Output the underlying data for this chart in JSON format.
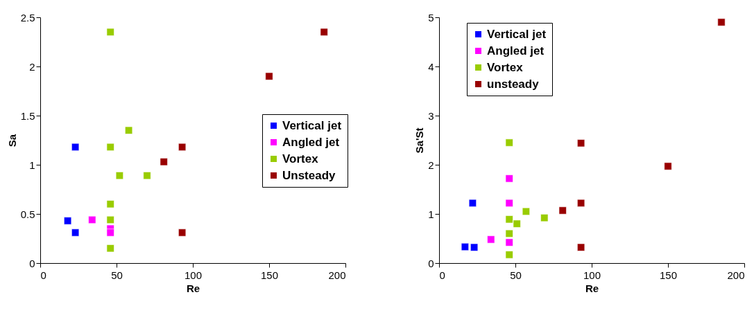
{
  "chart_data": [
    {
      "type": "scatter",
      "xlabel": "Re",
      "ylabel": "Sa",
      "xlim": [
        0,
        200
      ],
      "xticks": [
        0,
        50,
        100,
        150,
        200
      ],
      "ylim": [
        0,
        2.5
      ],
      "yticks": [
        0,
        0.5,
        1,
        1.5,
        2,
        2.5
      ],
      "grid": false,
      "legend": "right",
      "marker": "square",
      "series": [
        {
          "name": "Vertical jet",
          "color": "#0000ff",
          "x": [
            18,
            23,
            23
          ],
          "values": [
            0.43,
            1.18,
            0.31
          ]
        },
        {
          "name": "Angled jet",
          "color": "#ff00ff",
          "x": [
            34,
            46,
            46
          ],
          "values": [
            0.44,
            0.35,
            0.31
          ]
        },
        {
          "name": "Vortex",
          "color": "#99cc00",
          "x": [
            46,
            58,
            46,
            52,
            70,
            46,
            46,
            46
          ],
          "values": [
            2.35,
            1.35,
            1.18,
            0.89,
            0.89,
            0.6,
            0.44,
            0.15
          ]
        },
        {
          "name": "Unsteady",
          "color": "#990000",
          "x": [
            186,
            150,
            93,
            81,
            93
          ],
          "values": [
            2.35,
            1.9,
            1.18,
            1.03,
            0.31
          ]
        }
      ]
    },
    {
      "type": "scatter",
      "xlabel": "Re",
      "ylabel": "Sa'St",
      "xlim": [
        0,
        200
      ],
      "xticks": [
        0,
        50,
        100,
        150,
        200
      ],
      "ylim": [
        0,
        5
      ],
      "yticks": [
        0,
        1,
        2,
        3,
        4,
        5
      ],
      "grid": false,
      "legend": "top left",
      "marker": "square",
      "series": [
        {
          "name": "Vertical jet",
          "color": "#0000ff",
          "x": [
            17,
            23,
            22
          ],
          "values": [
            0.33,
            0.32,
            1.22
          ]
        },
        {
          "name": "Angled jet",
          "color": "#ff00ff",
          "x": [
            46,
            46,
            34,
            46
          ],
          "values": [
            1.72,
            1.22,
            0.48,
            0.42
          ]
        },
        {
          "name": "Vortex",
          "color": "#99cc00",
          "x": [
            46,
            57,
            69,
            46,
            51,
            46,
            46
          ],
          "values": [
            2.45,
            1.05,
            0.92,
            0.89,
            0.8,
            0.6,
            0.17
          ]
        },
        {
          "name": "unsteady",
          "color": "#990000",
          "x": [
            185,
            150,
            93,
            93,
            81,
            93
          ],
          "values": [
            4.9,
            1.97,
            2.44,
            1.22,
            1.07,
            0.32
          ]
        }
      ]
    }
  ]
}
